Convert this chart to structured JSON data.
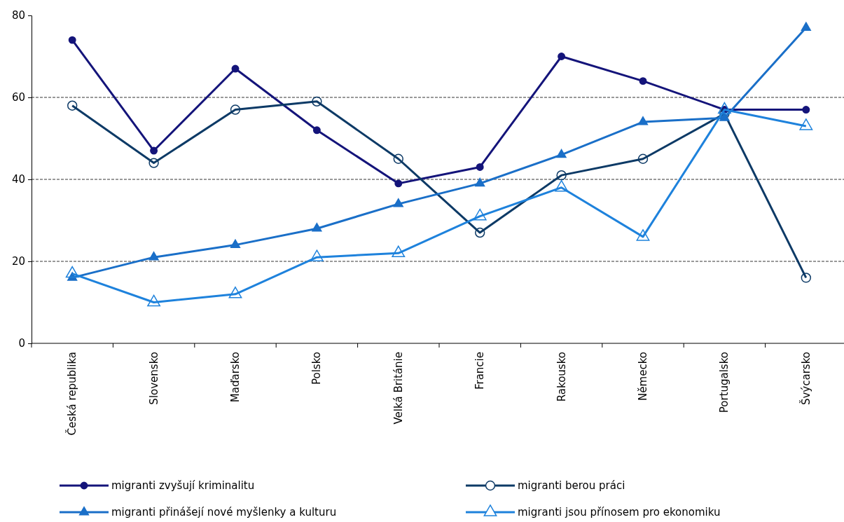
{
  "chart_data": {
    "type": "line",
    "categories": [
      "Česká republika",
      "Slovensko",
      "Maďarsko",
      "Polsko",
      "Velká Británie",
      "Francie",
      "Rakousko",
      "Německo",
      "Portugalsko",
      "Švýcarsko"
    ],
    "series": [
      {
        "name": "migranti zvyšují kriminalitu",
        "color": "#14147a",
        "marker": "circle",
        "values": [
          74,
          47,
          67,
          52,
          39,
          43,
          70,
          64,
          57,
          57
        ]
      },
      {
        "name": "migranti berou práci",
        "color": "#0d3a66",
        "marker": "circle",
        "values": [
          58,
          44,
          57,
          59,
          45,
          27,
          41,
          45,
          56,
          16
        ]
      },
      {
        "name": "migranti přinášejí nové myšlenky a kulturu",
        "color": "#1a6fc8",
        "marker": "triangle",
        "values": [
          16,
          21,
          24,
          28,
          34,
          39,
          46,
          54,
          55,
          77
        ]
      },
      {
        "name": "migranti jsou přínosem pro ekonomiku",
        "color": "#1e82dc",
        "marker": "triangle",
        "values": [
          17,
          10,
          12,
          21,
          22,
          31,
          38,
          26,
          57,
          53
        ]
      }
    ],
    "ylim": [
      0,
      80
    ],
    "yticks": [
      0,
      20,
      40,
      60,
      80
    ],
    "grid": "y",
    "legend": "bottom"
  }
}
